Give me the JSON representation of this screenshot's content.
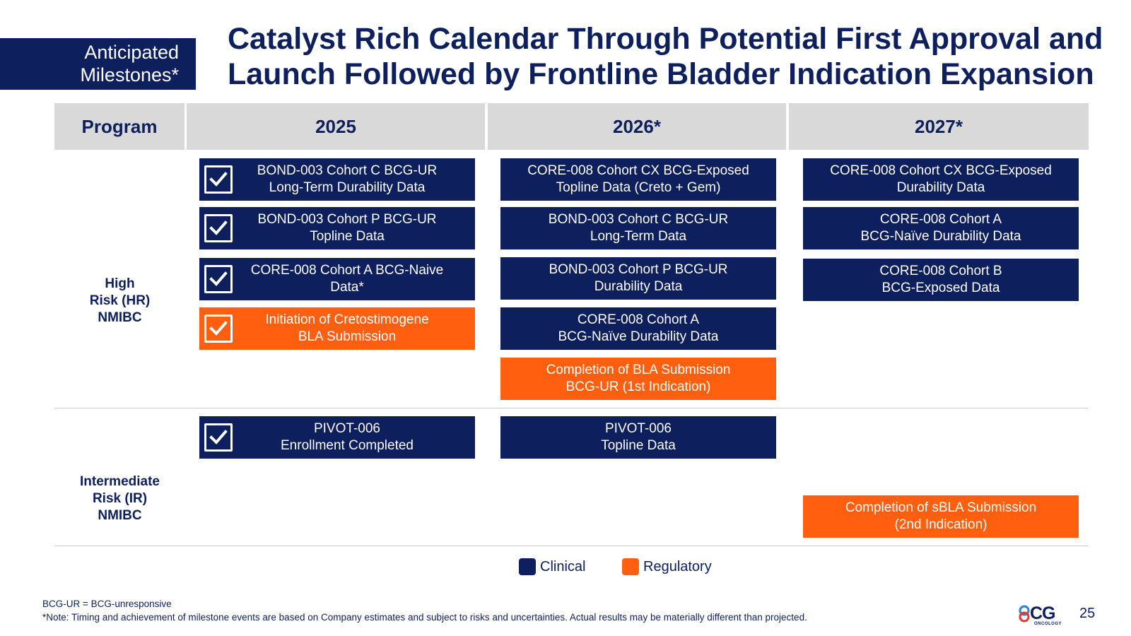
{
  "header": {
    "tag_line1": "Anticipated",
    "tag_line2": "Milestones*",
    "title_line1": "Catalyst Rich Calendar Through Potential First Approval and",
    "title_line2": "Launch Followed by Frontline Bladder Indication Expansion"
  },
  "table": {
    "columns": [
      "Program",
      "2025",
      "2026*",
      "2027*"
    ],
    "rows": [
      {
        "label": "High\nRisk (HR)\nNMIBC"
      },
      {
        "label": "Intermediate\nRisk (IR)\nNMIBC"
      }
    ],
    "milestones": {
      "hr_2025_1": {
        "text": "BOND-003 Cohort C BCG-UR\nLong-Term Durability Data",
        "type": "clinical",
        "completed": true
      },
      "hr_2025_2": {
        "text": "BOND-003 Cohort P BCG-UR\nTopline Data",
        "type": "clinical",
        "completed": true
      },
      "hr_2025_3": {
        "text": "CORE-008 Cohort A BCG-Naive\nData*",
        "type": "clinical",
        "completed": true
      },
      "hr_2025_4": {
        "text": "Initiation of Cretostimogene\nBLA Submission",
        "type": "regulatory",
        "completed": true
      },
      "hr_2026_1": {
        "text": "CORE-008 Cohort CX BCG-Exposed\nTopline Data (Creto + Gem)",
        "type": "clinical",
        "completed": false
      },
      "hr_2026_2": {
        "text": "BOND-003 Cohort C BCG-UR\nLong-Term Data",
        "type": "clinical",
        "completed": false
      },
      "hr_2026_3": {
        "text": "BOND-003 Cohort P BCG-UR\nDurability Data",
        "type": "clinical",
        "completed": false
      },
      "hr_2026_4": {
        "text": "CORE-008 Cohort A\nBCG-Naïve Durability Data",
        "type": "clinical",
        "completed": false
      },
      "hr_2026_5": {
        "text": "Completion of BLA Submission\nBCG-UR (1st Indication)",
        "type": "regulatory",
        "completed": false
      },
      "hr_2027_1": {
        "text": "CORE-008 Cohort CX BCG-Exposed\nDurability Data",
        "type": "clinical",
        "completed": false
      },
      "hr_2027_2": {
        "text": "CORE-008 Cohort A\nBCG-Naïve Durability Data",
        "type": "clinical",
        "completed": false
      },
      "hr_2027_3": {
        "text": "CORE-008 Cohort B\nBCG-Exposed Data",
        "type": "clinical",
        "completed": false
      },
      "ir_2025_1": {
        "text": "PIVOT-006\nEnrollment Completed",
        "type": "clinical",
        "completed": true
      },
      "ir_2026_1": {
        "text": "PIVOT-006\nTopline Data",
        "type": "clinical",
        "completed": false
      },
      "ir_2027_1": {
        "text": "Completion of sBLA Submission\n(2nd Indication)",
        "type": "regulatory",
        "completed": false
      }
    }
  },
  "legend": {
    "clinical_label": "Clinical",
    "regulatory_label": "Regulatory",
    "clinical_color": "#0d1f5c",
    "regulatory_color": "#ff5f0f"
  },
  "footer": {
    "abbrev": "BCG-UR = BCG-unresponsive",
    "note": "*Note: Timing and achievement of milestone events are based on Company estimates and subject to risks and uncertainties. Actual results may be materially different than projected.",
    "logo_text": "CG",
    "logo_sub": "ONCOLOGY",
    "page_number": "25"
  }
}
